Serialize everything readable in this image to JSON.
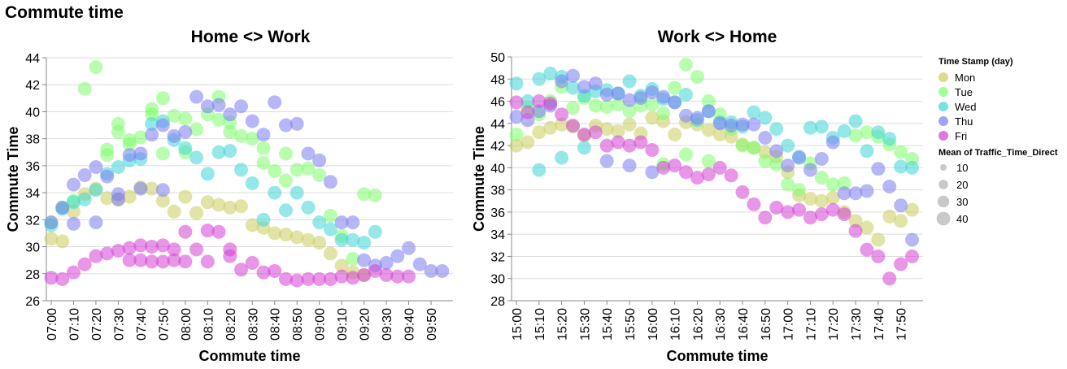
{
  "page_title": "Commute time",
  "chart_data": [
    {
      "type": "scatter",
      "title": "Home <> Work",
      "xlabel": "Commute time",
      "ylabel": "Commute Time",
      "ylim": [
        26,
        44
      ],
      "y_ticks": [
        26,
        28,
        30,
        32,
        34,
        36,
        38,
        40,
        42,
        44
      ],
      "x_ticks": [
        "07:00",
        "07:10",
        "07:20",
        "07:30",
        "07:40",
        "07:50",
        "08:00",
        "08:10",
        "08:20",
        "08:30",
        "08:40",
        "08:50",
        "09:00",
        "09:10",
        "09:20",
        "09:30",
        "09:40",
        "09:50"
      ],
      "x_unit": "clock time, 5-minute steps",
      "grid": true,
      "series": [
        {
          "name": "Mon",
          "x": [
            "07:00",
            "07:05",
            "07:10",
            "07:15",
            "07:20",
            "07:25",
            "07:30",
            "07:35",
            "07:40",
            "07:45",
            "07:50",
            "07:55",
            "08:00",
            "08:05",
            "08:10",
            "08:15",
            "08:20",
            "08:25",
            "08:30",
            "08:35",
            "08:40",
            "08:45",
            "08:50",
            "08:55",
            "09:00",
            "09:05",
            "09:10",
            "09:15",
            "09:20"
          ],
          "y": [
            30.6,
            30.4,
            32.6,
            33.9,
            34.3,
            33.6,
            33.5,
            33.7,
            34.4,
            34.3,
            33.4,
            32.6,
            33.7,
            32.5,
            33.3,
            33.1,
            32.9,
            33.0,
            31.6,
            31.4,
            31.0,
            30.9,
            30.7,
            30.5,
            30.3,
            29.5,
            28.6,
            28.1,
            27.9
          ]
        },
        {
          "name": "Tue",
          "x": [
            "07:00",
            "07:05",
            "07:10",
            "07:15",
            "07:20",
            "07:25",
            "07:30",
            "07:35",
            "07:40",
            "07:45",
            "07:50",
            "07:55",
            "08:00",
            "08:05",
            "08:10",
            "08:15",
            "08:20",
            "08:25",
            "08:30",
            "08:35",
            "08:40",
            "08:45",
            "08:50",
            "08:55",
            "09:00",
            "09:05",
            "09:10",
            "09:15",
            "09:20",
            "09:25",
            "07:25",
            "07:30",
            "07:35",
            "07:45",
            "07:50",
            "08:00",
            "08:15",
            "08:20",
            "08:35",
            "08:45"
          ],
          "y": [
            31.8,
            32.9,
            33.4,
            41.7,
            43.3,
            37.2,
            39.1,
            37.9,
            38.1,
            40.2,
            41.0,
            39.7,
            39.5,
            38.7,
            39.8,
            41.1,
            39.2,
            38.2,
            38.0,
            37.3,
            35.6,
            36.9,
            35.7,
            35.8,
            35.3,
            32.3,
            30.8,
            29.1,
            33.9,
            33.8,
            36.8,
            38.5,
            37.6,
            39.8,
            36.9,
            37.0,
            39.4,
            38.5,
            36.2,
            34.9
          ]
        },
        {
          "name": "Wed",
          "x": [
            "07:00",
            "07:05",
            "07:10",
            "07:15",
            "07:20",
            "07:25",
            "07:30",
            "07:35",
            "07:40",
            "07:45",
            "07:50",
            "07:55",
            "08:00",
            "08:05",
            "08:10",
            "08:15",
            "08:20",
            "08:25",
            "08:30",
            "08:35",
            "08:40",
            "08:45",
            "08:50",
            "08:55",
            "09:00",
            "09:05",
            "09:10",
            "09:15",
            "09:20",
            "09:25"
          ],
          "y": [
            31.6,
            32.8,
            33.3,
            33.5,
            34.2,
            35.4,
            35.9,
            36.4,
            36.5,
            39.1,
            39.3,
            37.9,
            37.3,
            36.6,
            35.4,
            37.0,
            37.1,
            35.7,
            34.7,
            32.0,
            34.0,
            32.7,
            34.0,
            32.9,
            31.8,
            31.3,
            30.5,
            30.5,
            30.3,
            31.1
          ]
        },
        {
          "name": "Thu",
          "x": [
            "07:00",
            "07:05",
            "07:10",
            "07:15",
            "07:20",
            "07:25",
            "07:30",
            "07:35",
            "07:40",
            "07:45",
            "07:50",
            "07:55",
            "08:00",
            "08:05",
            "08:10",
            "08:15",
            "08:20",
            "08:25",
            "08:30",
            "08:35",
            "08:40",
            "08:45",
            "08:50",
            "08:55",
            "09:00",
            "09:05",
            "09:10",
            "09:15",
            "09:20",
            "09:25",
            "09:30",
            "09:35",
            "09:40",
            "09:45",
            "09:50",
            "09:55",
            "07:10",
            "07:20",
            "07:30",
            "07:40",
            "07:50"
          ],
          "y": [
            31.8,
            32.9,
            34.6,
            35.3,
            35.9,
            35.2,
            33.9,
            36.8,
            36.9,
            38.3,
            39.0,
            38.2,
            38.5,
            41.1,
            40.4,
            40.5,
            39.8,
            40.4,
            39.3,
            38.3,
            40.7,
            39.0,
            39.1,
            36.9,
            36.4,
            34.8,
            31.8,
            31.8,
            29.0,
            28.6,
            28.8,
            29.3,
            29.9,
            28.7,
            28.2,
            28.2,
            31.7,
            31.8,
            33.5,
            34.3,
            34.2
          ]
        },
        {
          "name": "Fri",
          "x": [
            "07:00",
            "07:05",
            "07:10",
            "07:15",
            "07:20",
            "07:25",
            "07:30",
            "07:35",
            "07:40",
            "07:45",
            "07:50",
            "07:55",
            "08:00",
            "08:05",
            "08:10",
            "08:15",
            "08:20",
            "08:25",
            "08:30",
            "08:35",
            "08:40",
            "08:45",
            "08:50",
            "08:55",
            "09:00",
            "09:05",
            "09:10",
            "09:15",
            "09:20",
            "09:25",
            "09:30",
            "09:35",
            "09:40",
            "07:35",
            "07:40",
            "07:45",
            "07:50",
            "07:55",
            "08:00",
            "08:10",
            "08:20"
          ],
          "y": [
            27.7,
            27.6,
            28.1,
            28.7,
            29.3,
            29.5,
            29.7,
            29.9,
            30.1,
            30.0,
            30.1,
            29.8,
            31.1,
            29.8,
            31.2,
            31.1,
            29.8,
            28.3,
            28.8,
            28.1,
            28.2,
            27.6,
            27.5,
            27.6,
            27.6,
            27.6,
            27.8,
            27.7,
            27.9,
            28.2,
            27.9,
            27.8,
            27.8,
            29.0,
            29.0,
            28.9,
            28.9,
            29.0,
            28.9,
            28.9,
            29.3
          ]
        }
      ]
    },
    {
      "type": "scatter",
      "title": "Work <> Home",
      "xlabel": "Commute time",
      "ylabel": "Commute Time",
      "ylim": [
        28,
        50
      ],
      "y_ticks": [
        28,
        30,
        32,
        34,
        36,
        38,
        40,
        42,
        44,
        46,
        48,
        50
      ],
      "x_ticks": [
        "15:00",
        "15:10",
        "15:20",
        "15:30",
        "15:40",
        "15:50",
        "16:00",
        "16:10",
        "16:20",
        "16:30",
        "16:40",
        "16:50",
        "17:00",
        "17:10",
        "17:20",
        "17:30",
        "17:40",
        "17:50"
      ],
      "x_unit": "clock time, 5-minute steps",
      "grid": true,
      "series": [
        {
          "name": "Mon",
          "x": [
            "15:00",
            "15:05",
            "15:10",
            "15:15",
            "15:20",
            "15:25",
            "15:30",
            "15:35",
            "15:40",
            "15:45",
            "15:50",
            "15:55",
            "16:00",
            "16:05",
            "16:10",
            "16:15",
            "16:20",
            "16:25",
            "16:30",
            "16:35",
            "16:40",
            "16:45",
            "16:50",
            "16:55",
            "17:00",
            "17:05",
            "17:10",
            "17:15",
            "17:20",
            "17:25",
            "17:30",
            "17:35",
            "17:40",
            "17:45",
            "17:50",
            "17:55"
          ],
          "y": [
            42.0,
            42.3,
            43.2,
            43.6,
            43.9,
            43.7,
            42.9,
            43.8,
            43.5,
            43.3,
            43.9,
            43.1,
            44.5,
            44.2,
            43.0,
            44.1,
            43.9,
            43.4,
            43.0,
            42.8,
            42.1,
            41.8,
            41.4,
            41.0,
            39.6,
            37.5,
            37.2,
            37.0,
            37.3,
            36.0,
            35.2,
            34.6,
            33.5,
            35.6,
            35.2,
            36.2
          ]
        },
        {
          "name": "Tue",
          "x": [
            "15:00",
            "15:05",
            "15:10",
            "15:15",
            "15:20",
            "15:25",
            "15:30",
            "15:35",
            "15:40",
            "15:45",
            "15:50",
            "15:55",
            "16:00",
            "16:05",
            "16:10",
            "16:15",
            "16:20",
            "16:25",
            "16:30",
            "16:35",
            "16:40",
            "16:45",
            "16:50",
            "16:55",
            "17:00",
            "17:05",
            "17:10",
            "17:15",
            "17:20",
            "17:25",
            "17:30",
            "17:35",
            "17:40",
            "17:45",
            "17:50",
            "17:55",
            "16:05",
            "16:15",
            "16:25"
          ],
          "y": [
            43.0,
            45.4,
            44.8,
            46.0,
            47.3,
            45.4,
            46.3,
            45.6,
            45.5,
            45.7,
            45.1,
            45.6,
            45.7,
            44.9,
            47.2,
            49.3,
            48.2,
            46.0,
            44.8,
            43.5,
            42.0,
            41.8,
            40.6,
            40.3,
            38.5,
            38.0,
            40.4,
            39.1,
            38.5,
            38.6,
            42.9,
            43.2,
            42.8,
            42.1,
            41.4,
            40.8,
            40.3,
            41.2,
            40.6
          ]
        },
        {
          "name": "Wed",
          "x": [
            "15:00",
            "15:05",
            "15:10",
            "15:15",
            "15:20",
            "15:25",
            "15:30",
            "15:35",
            "15:40",
            "15:45",
            "15:50",
            "15:55",
            "16:00",
            "16:05",
            "16:10",
            "16:15",
            "16:20",
            "16:25",
            "16:30",
            "16:35",
            "16:40",
            "16:45",
            "16:50",
            "16:55",
            "17:00",
            "17:05",
            "17:10",
            "17:15",
            "17:20",
            "17:25",
            "17:30",
            "17:35",
            "17:40",
            "17:45",
            "17:50",
            "17:55",
            "15:10",
            "15:20",
            "15:30"
          ],
          "y": [
            47.6,
            46.0,
            48.0,
            48.5,
            48.2,
            47.2,
            46.5,
            46.9,
            47.0,
            46.7,
            47.8,
            46.5,
            47.1,
            46.2,
            45.9,
            46.6,
            44.3,
            45.1,
            44.1,
            44.1,
            43.7,
            45.0,
            44.5,
            43.5,
            42.0,
            41.0,
            43.6,
            43.7,
            42.7,
            43.3,
            44.2,
            41.5,
            43.2,
            42.6,
            40.1,
            40.0,
            39.8,
            40.9,
            41.8
          ]
        },
        {
          "name": "Thu",
          "x": [
            "15:00",
            "15:05",
            "15:10",
            "15:15",
            "15:20",
            "15:25",
            "15:30",
            "15:35",
            "15:40",
            "15:45",
            "15:50",
            "15:55",
            "16:00",
            "16:05",
            "16:10",
            "16:15",
            "16:20",
            "16:25",
            "16:30",
            "16:35",
            "16:40",
            "16:45",
            "16:50",
            "16:55",
            "17:00",
            "17:05",
            "17:10",
            "17:15",
            "17:20",
            "17:25",
            "17:30",
            "17:35",
            "17:40",
            "17:45",
            "17:50",
            "17:55",
            "15:40",
            "15:50",
            "16:00"
          ],
          "y": [
            44.6,
            44.3,
            45.1,
            45.6,
            47.8,
            48.3,
            47.3,
            47.6,
            46.6,
            46.7,
            46.1,
            46.3,
            46.8,
            46.4,
            45.9,
            44.7,
            44.5,
            45.1,
            44.0,
            43.8,
            43.9,
            43.9,
            42.7,
            41.5,
            40.2,
            40.9,
            39.8,
            40.8,
            42.3,
            37.7,
            37.7,
            37.9,
            39.9,
            38.3,
            36.6,
            33.5,
            40.6,
            40.2,
            39.6
          ]
        },
        {
          "name": "Fri",
          "x": [
            "15:00",
            "15:05",
            "15:10",
            "15:15",
            "15:20",
            "15:25",
            "15:30",
            "15:35",
            "15:40",
            "15:45",
            "15:50",
            "15:55",
            "16:00",
            "16:05",
            "16:10",
            "16:15",
            "16:20",
            "16:25",
            "16:30",
            "16:35",
            "16:40",
            "16:45",
            "16:50",
            "16:55",
            "17:00",
            "17:05",
            "17:10",
            "17:15",
            "17:20",
            "17:25",
            "17:30",
            "17:35",
            "17:40",
            "17:45",
            "17:50",
            "17:55"
          ],
          "y": [
            45.9,
            45.0,
            46.0,
            45.8,
            44.8,
            43.8,
            43.0,
            43.2,
            42.0,
            42.3,
            42.0,
            42.3,
            41.6,
            40.0,
            40.2,
            39.6,
            39.1,
            39.4,
            40.0,
            39.3,
            37.8,
            36.7,
            35.5,
            36.4,
            36.0,
            36.2,
            35.5,
            35.8,
            36.2,
            35.8,
            34.3,
            32.6,
            32.0,
            30.0,
            31.3,
            32.0
          ]
        }
      ]
    }
  ],
  "legend": {
    "color_title": "Time Stamp (day)",
    "days": [
      {
        "label": "Mon",
        "color": "#c9cd5c"
      },
      {
        "label": "Tue",
        "color": "#7dfd6b"
      },
      {
        "label": "Wed",
        "color": "#3fd6d6"
      },
      {
        "label": "Thu",
        "color": "#7b7bf2"
      },
      {
        "label": "Fri",
        "color": "#d33fd6"
      }
    ],
    "size_title": "Mean of Traffic_Time_Direct",
    "sizes": [
      {
        "label": "10"
      },
      {
        "label": "20"
      },
      {
        "label": "30"
      },
      {
        "label": "40"
      }
    ]
  }
}
